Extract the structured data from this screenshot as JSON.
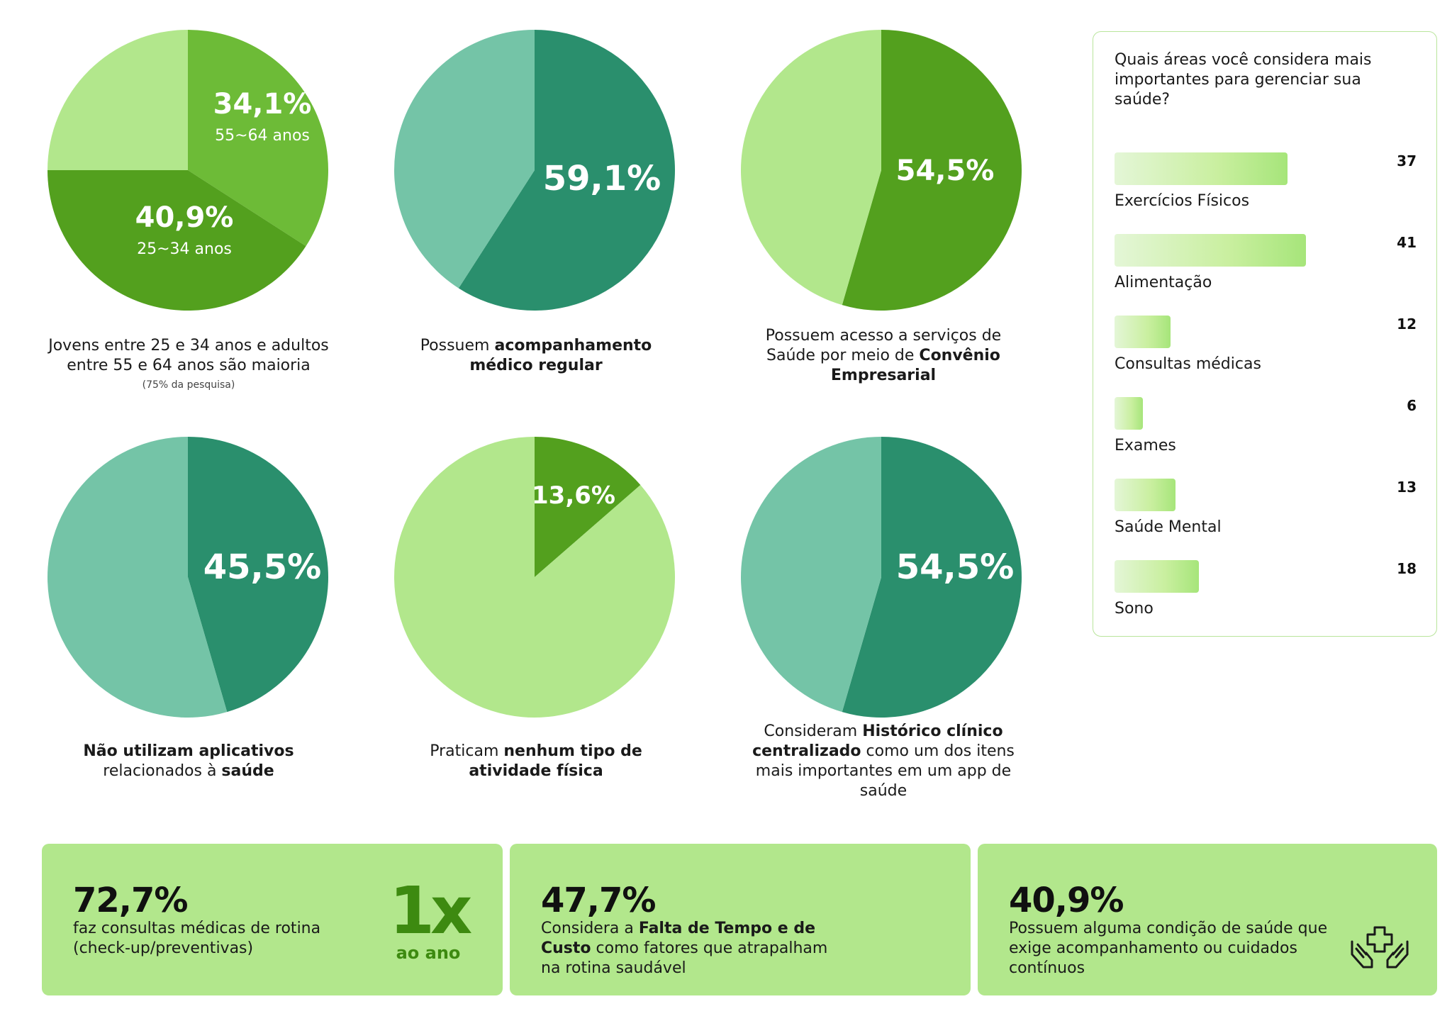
{
  "colors": {
    "dark_green": "#53a01e",
    "mid_green": "#6dbb37",
    "light_green": "#b2e78c",
    "dark_teal": "#2a8f6d",
    "light_teal": "#74c4a7",
    "card_bg": "#b2e78c"
  },
  "chart_data": [
    {
      "type": "pie",
      "slices": [
        {
          "name": "55~64 anos",
          "value": 34.1,
          "label": "34,1%",
          "sublabel": "55~64 anos",
          "color": "#6dbb37"
        },
        {
          "name": "25~34 anos",
          "value": 40.9,
          "label": "40,9%",
          "sublabel": "25~34 anos",
          "color": "#53a01e"
        },
        {
          "name": "",
          "value": 25.0,
          "label": "",
          "sublabel": "",
          "color": "#b2e78c"
        }
      ],
      "caption_html": "Jovens entre 25 e 34 anos e adultos entre 55 e 64 anos são maioria",
      "caption_note": "(75% da pesquisa)"
    },
    {
      "type": "pie",
      "slices": [
        {
          "name": "",
          "value": 59.1,
          "label": "59,1%",
          "sublabel": "",
          "color": "#2a8f6d"
        },
        {
          "name": "",
          "value": 40.9,
          "label": "",
          "sublabel": "",
          "color": "#74c4a7"
        }
      ],
      "caption_html": "Possuem <b>acompanhamento médico regular</b>",
      "caption_note": ""
    },
    {
      "type": "pie",
      "slices": [
        {
          "name": "",
          "value": 54.5,
          "label": "54,5%",
          "sublabel": "",
          "color": "#53a01e"
        },
        {
          "name": "",
          "value": 45.5,
          "label": "",
          "sublabel": "",
          "color": "#b2e78c"
        }
      ],
      "caption_html": "Possuem acesso a serviços de Saúde por meio de <b>Convênio Empresarial</b>",
      "caption_note": ""
    },
    {
      "type": "pie",
      "slices": [
        {
          "name": "",
          "value": 45.5,
          "label": "45,5%",
          "sublabel": "",
          "color": "#2a8f6d"
        },
        {
          "name": "",
          "value": 54.5,
          "label": "",
          "sublabel": "",
          "color": "#74c4a7"
        }
      ],
      "caption_html": "<b>Não utilizam aplicativos</b> relacionados à <b>saúde</b>",
      "caption_note": ""
    },
    {
      "type": "pie",
      "slices": [
        {
          "name": "",
          "value": 13.6,
          "label": "13,6%",
          "sublabel": "",
          "color": "#53a01e"
        },
        {
          "name": "",
          "value": 86.4,
          "label": "",
          "sublabel": "",
          "color": "#b2e78c"
        }
      ],
      "caption_html": "Praticam <b>nenhum tipo de atividade física</b>",
      "caption_note": ""
    },
    {
      "type": "pie",
      "slices": [
        {
          "name": "",
          "value": 54.5,
          "label": "54,5%",
          "sublabel": "",
          "color": "#2a8f6d"
        },
        {
          "name": "",
          "value": 45.5,
          "label": "",
          "sublabel": "",
          "color": "#74c4a7"
        }
      ],
      "caption_html": "Consideram <b>Histórico clínico centralizado</b> como um dos itens mais importantes em um app de saúde",
      "caption_note": ""
    },
    {
      "type": "bar",
      "title": "Quais áreas você considera mais importantes para gerenciar sua saúde?",
      "categories": [
        "Exercícios Físicos",
        "Alimentação",
        "Consultas médicas",
        "Exames",
        "Saúde Mental",
        "Sono"
      ],
      "values": [
        37,
        41,
        12,
        6,
        13,
        18
      ],
      "xlabel": "",
      "ylabel": ""
    }
  ],
  "cards": [
    {
      "value": "72,7%",
      "text_html": "faz consultas médicas de rotina (check-up/preventivas)",
      "badge_big": "1x",
      "badge_small": "ao ano"
    },
    {
      "value": "47,7%",
      "text_html": "Considera a <b>Falta de Tempo e de Custo</b> como fatores que atrapalham na rotina saudável"
    },
    {
      "value": "40,9%",
      "text_html": "Possuem alguma condição de saúde que exige acompanhamento ou cuidados contínuos",
      "icon": "hands-medical-cross-icon"
    }
  ]
}
